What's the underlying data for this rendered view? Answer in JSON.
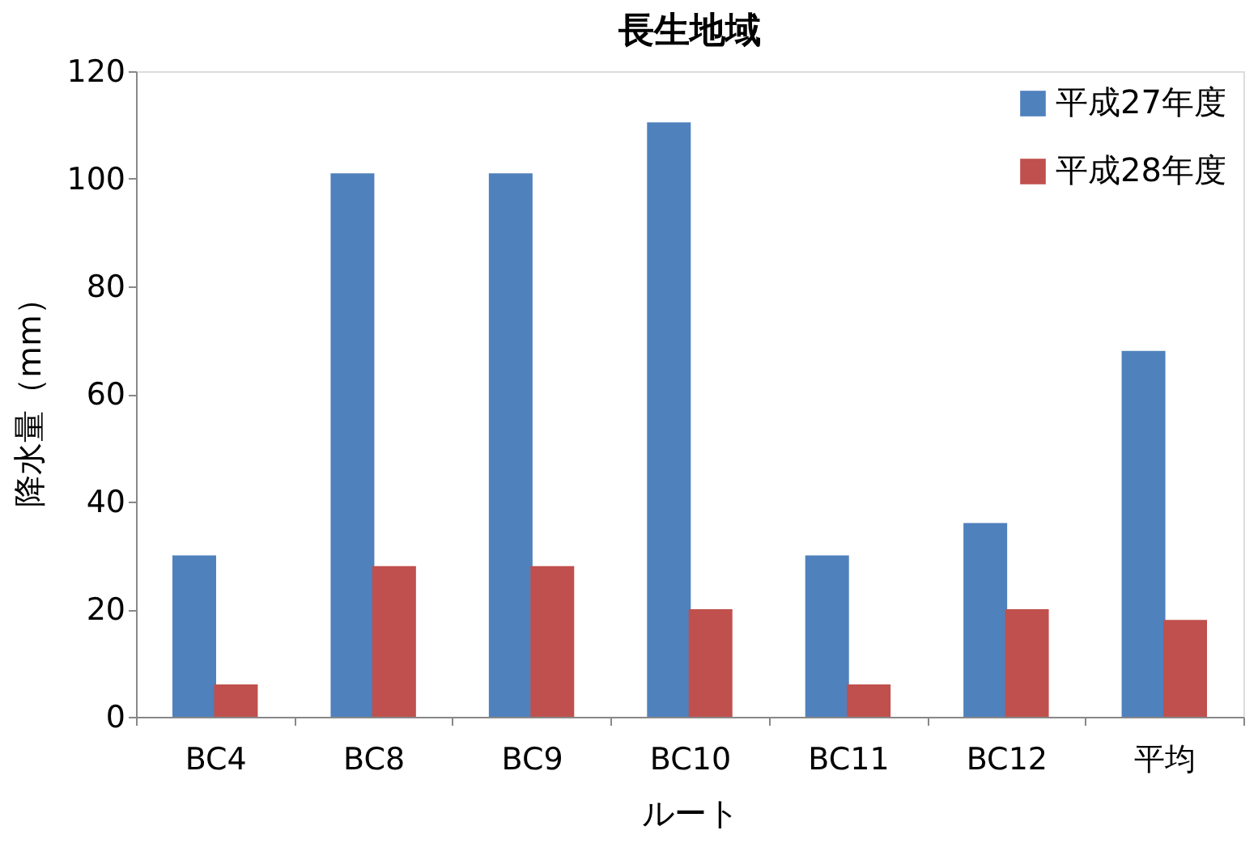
{
  "chart_data": {
    "type": "bar",
    "title": "長生地域",
    "xlabel": "ルート",
    "ylabel": "降水量（mm）",
    "categories": [
      "BC4",
      "BC8",
      "BC9",
      "BC10",
      "BC11",
      "BC12",
      "平均"
    ],
    "series": [
      {
        "name": "平成27年度",
        "color": "#4f81bd",
        "values": [
          30,
          101,
          101,
          110.5,
          30,
          36,
          68
        ]
      },
      {
        "name": "平成28年度",
        "color": "#c0504d",
        "values": [
          6,
          28,
          28,
          20,
          6,
          20,
          18
        ]
      }
    ],
    "ylim": [
      0,
      120
    ],
    "yticks": [
      0,
      20,
      40,
      60,
      80,
      100,
      120
    ],
    "grid": false,
    "legend": "top right"
  }
}
